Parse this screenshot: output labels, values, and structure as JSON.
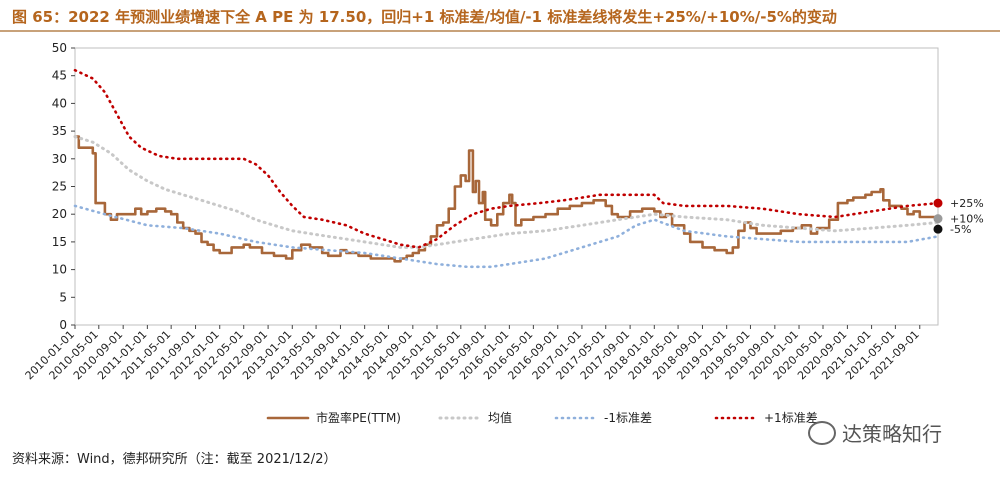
{
  "title": "图 65：2022 年预测业绩增速下全 A PE 为 17.50，回归+1 标准差/均值/-1 标准差线将发生+25%/+10%/-5%的变动",
  "source": "资料来源：Wind，德邦研究所（注：截至 2021/12/2）",
  "watermark": "达策略知行",
  "colors": {
    "pe": "#a8673a",
    "mean": "#c8c8c8",
    "minus1": "#8fb0dc",
    "plus1": "#c00000",
    "marker_plus25": "#c00000",
    "marker_plus10": "#9a9a9a",
    "marker_minus5": "#111111"
  },
  "chart_data": {
    "type": "line",
    "ylim": [
      0,
      50
    ],
    "yticks": [
      0,
      5,
      10,
      15,
      20,
      25,
      30,
      35,
      40,
      45,
      50
    ],
    "xlim": [
      "2010-01-01",
      "2021-12-02"
    ],
    "xticks": [
      "2010-01-01",
      "2010-05-01",
      "2010-09-01",
      "2011-01-01",
      "2011-05-01",
      "2011-09-01",
      "2012-01-01",
      "2012-05-01",
      "2012-09-01",
      "2013-01-01",
      "2013-05-01",
      "2013-09-01",
      "2014-01-01",
      "2014-05-01",
      "2014-09-01",
      "2015-01-01",
      "2015-05-01",
      "2015-09-01",
      "2016-01-01",
      "2016-05-01",
      "2016-09-01",
      "2017-01-01",
      "2017-05-01",
      "2017-09-01",
      "2018-01-01",
      "2018-05-01",
      "2018-09-01",
      "2019-01-01",
      "2019-05-01",
      "2019-09-01",
      "2020-01-01",
      "2020-05-01",
      "2020-09-01",
      "2021-01-01",
      "2021-05-01",
      "2021-09-01"
    ],
    "legend_position": "bottom",
    "series": [
      {
        "name": "市盈率PE(TTM)",
        "style": "solid",
        "points": [
          [
            "2010-01-01",
            34
          ],
          [
            "2010-01-20",
            32
          ],
          [
            "2010-03-01",
            32
          ],
          [
            "2010-04-01",
            31
          ],
          [
            "2010-04-15",
            22
          ],
          [
            "2010-06-01",
            20
          ],
          [
            "2010-07-01",
            19
          ],
          [
            "2010-08-01",
            20
          ],
          [
            "2010-10-01",
            20
          ],
          [
            "2010-11-01",
            21
          ],
          [
            "2010-12-01",
            20
          ],
          [
            "2011-01-01",
            20.5
          ],
          [
            "2011-02-15",
            21
          ],
          [
            "2011-04-01",
            20.5
          ],
          [
            "2011-05-01",
            20
          ],
          [
            "2011-06-01",
            18.5
          ],
          [
            "2011-07-01",
            17.5
          ],
          [
            "2011-08-01",
            17
          ],
          [
            "2011-09-01",
            16.5
          ],
          [
            "2011-10-01",
            15
          ],
          [
            "2011-11-01",
            14.5
          ],
          [
            "2011-12-01",
            13.5
          ],
          [
            "2012-01-01",
            13
          ],
          [
            "2012-03-01",
            14
          ],
          [
            "2012-05-01",
            14.5
          ],
          [
            "2012-06-01",
            14
          ],
          [
            "2012-08-01",
            13
          ],
          [
            "2012-10-01",
            12.5
          ],
          [
            "2012-12-01",
            12
          ],
          [
            "2013-01-01",
            13.5
          ],
          [
            "2013-02-15",
            14.5
          ],
          [
            "2013-04-01",
            14
          ],
          [
            "2013-06-01",
            13
          ],
          [
            "2013-07-01",
            12.5
          ],
          [
            "2013-09-01",
            13.5
          ],
          [
            "2013-10-01",
            13
          ],
          [
            "2013-12-01",
            12.5
          ],
          [
            "2014-02-01",
            12
          ],
          [
            "2014-04-01",
            12
          ],
          [
            "2014-06-01",
            11.5
          ],
          [
            "2014-07-01",
            12
          ],
          [
            "2014-08-01",
            12.5
          ],
          [
            "2014-09-01",
            13
          ],
          [
            "2014-10-01",
            13.5
          ],
          [
            "2014-11-01",
            14.5
          ],
          [
            "2014-12-01",
            16
          ],
          [
            "2015-01-01",
            18
          ],
          [
            "2015-02-01",
            18.5
          ],
          [
            "2015-03-01",
            21
          ],
          [
            "2015-04-01",
            25
          ],
          [
            "2015-05-01",
            27
          ],
          [
            "2015-05-25",
            26
          ],
          [
            "2015-06-12",
            31.5
          ],
          [
            "2015-07-01",
            24
          ],
          [
            "2015-07-15",
            26
          ],
          [
            "2015-08-01",
            22
          ],
          [
            "2015-08-20",
            24
          ],
          [
            "2015-09-01",
            19
          ],
          [
            "2015-10-01",
            18
          ],
          [
            "2015-11-01",
            20
          ],
          [
            "2015-12-01",
            22
          ],
          [
            "2016-01-01",
            23.5
          ],
          [
            "2016-01-15",
            22
          ],
          [
            "2016-02-01",
            18
          ],
          [
            "2016-03-01",
            19
          ],
          [
            "2016-05-01",
            19.5
          ],
          [
            "2016-07-01",
            20
          ],
          [
            "2016-09-01",
            21
          ],
          [
            "2016-11-01",
            21.5
          ],
          [
            "2017-01-01",
            22
          ],
          [
            "2017-03-01",
            22.5
          ],
          [
            "2017-05-01",
            21.5
          ],
          [
            "2017-06-01",
            20
          ],
          [
            "2017-07-01",
            19.5
          ],
          [
            "2017-09-01",
            20.5
          ],
          [
            "2017-11-01",
            21
          ],
          [
            "2018-01-01",
            20.5
          ],
          [
            "2018-02-01",
            19.5
          ],
          [
            "2018-03-01",
            20
          ],
          [
            "2018-04-01",
            18
          ],
          [
            "2018-06-01",
            16.5
          ],
          [
            "2018-07-01",
            15
          ],
          [
            "2018-09-01",
            14
          ],
          [
            "2018-11-01",
            13.5
          ],
          [
            "2019-01-01",
            13
          ],
          [
            "2019-02-01",
            14
          ],
          [
            "2019-03-01",
            17
          ],
          [
            "2019-04-01",
            18.5
          ],
          [
            "2019-05-01",
            17.5
          ],
          [
            "2019-06-01",
            16.5
          ],
          [
            "2019-08-01",
            16.5
          ],
          [
            "2019-10-01",
            17
          ],
          [
            "2019-12-01",
            17.5
          ],
          [
            "2020-01-15",
            18
          ],
          [
            "2020-03-01",
            16.5
          ],
          [
            "2020-04-01",
            17.5
          ],
          [
            "2020-06-01",
            19
          ],
          [
            "2020-07-15",
            22
          ],
          [
            "2020-09-01",
            22.5
          ],
          [
            "2020-10-01",
            23
          ],
          [
            "2020-12-01",
            23.5
          ],
          [
            "2021-01-01",
            24
          ],
          [
            "2021-02-15",
            24.5
          ],
          [
            "2021-03-01",
            22.5
          ],
          [
            "2021-04-01",
            21.5
          ],
          [
            "2021-06-01",
            21
          ],
          [
            "2021-07-01",
            20
          ],
          [
            "2021-08-01",
            20.5
          ],
          [
            "2021-09-01",
            19.5
          ],
          [
            "2021-10-01",
            19.5
          ],
          [
            "2021-11-01",
            19.5
          ],
          [
            "2021-12-02",
            19.5
          ]
        ]
      },
      {
        "name": "均值",
        "style": "dotted",
        "points": [
          [
            "2010-01-01",
            34
          ],
          [
            "2010-04-01",
            33
          ],
          [
            "2010-07-01",
            31
          ],
          [
            "2010-10-01",
            28
          ],
          [
            "2011-01-01",
            26
          ],
          [
            "2011-04-01",
            24.5
          ],
          [
            "2011-07-01",
            23.5
          ],
          [
            "2011-10-01",
            22.5
          ],
          [
            "2012-01-01",
            21.5
          ],
          [
            "2012-04-01",
            20.5
          ],
          [
            "2012-07-01",
            19
          ],
          [
            "2012-10-01",
            18
          ],
          [
            "2013-01-01",
            17
          ],
          [
            "2013-04-01",
            16.5
          ],
          [
            "2013-07-01",
            16
          ],
          [
            "2013-10-01",
            15.5
          ],
          [
            "2014-01-01",
            15
          ],
          [
            "2014-04-01",
            14.5
          ],
          [
            "2014-07-01",
            14
          ],
          [
            "2014-10-01",
            14
          ],
          [
            "2015-01-01",
            14.5
          ],
          [
            "2015-04-01",
            15
          ],
          [
            "2015-07-01",
            15.5
          ],
          [
            "2015-10-01",
            16
          ],
          [
            "2016-01-01",
            16.5
          ],
          [
            "2016-07-01",
            17
          ],
          [
            "2017-01-01",
            18
          ],
          [
            "2017-07-01",
            19
          ],
          [
            "2017-10-01",
            19.5
          ],
          [
            "2018-01-01",
            20
          ],
          [
            "2018-06-01",
            19.5
          ],
          [
            "2019-01-01",
            19
          ],
          [
            "2019-07-01",
            18
          ],
          [
            "2020-01-01",
            17.5
          ],
          [
            "2020-07-01",
            17
          ],
          [
            "2021-01-01",
            17.5
          ],
          [
            "2021-07-01",
            18
          ],
          [
            "2021-12-02",
            18.5
          ]
        ]
      },
      {
        "name": "-1标准差",
        "style": "dotted",
        "points": [
          [
            "2010-01-01",
            21.5
          ],
          [
            "2010-06-01",
            20
          ],
          [
            "2011-01-01",
            18
          ],
          [
            "2011-07-01",
            17.5
          ],
          [
            "2012-01-01",
            16.5
          ],
          [
            "2012-07-01",
            15
          ],
          [
            "2013-01-01",
            14
          ],
          [
            "2013-07-01",
            13.5
          ],
          [
            "2014-01-01",
            13
          ],
          [
            "2014-07-01",
            12
          ],
          [
            "2014-10-01",
            11.5
          ],
          [
            "2015-01-01",
            11
          ],
          [
            "2015-06-01",
            10.5
          ],
          [
            "2015-10-01",
            10.5
          ],
          [
            "2016-01-01",
            11
          ],
          [
            "2016-07-01",
            12
          ],
          [
            "2017-01-01",
            14
          ],
          [
            "2017-07-01",
            16
          ],
          [
            "2017-10-01",
            18
          ],
          [
            "2018-01-01",
            19
          ],
          [
            "2018-06-01",
            17
          ],
          [
            "2019-01-01",
            16
          ],
          [
            "2019-07-01",
            15.5
          ],
          [
            "2020-01-01",
            15
          ],
          [
            "2020-07-01",
            15
          ],
          [
            "2021-01-01",
            15
          ],
          [
            "2021-07-01",
            15
          ],
          [
            "2021-12-02",
            16
          ]
        ]
      },
      {
        "name": "+1标准差",
        "style": "dotted",
        "points": [
          [
            "2010-01-01",
            46
          ],
          [
            "2010-04-01",
            44.5
          ],
          [
            "2010-06-01",
            42
          ],
          [
            "2010-08-01",
            38
          ],
          [
            "2010-10-01",
            34
          ],
          [
            "2010-12-01",
            32
          ],
          [
            "2011-03-01",
            30.5
          ],
          [
            "2011-06-01",
            30
          ],
          [
            "2011-12-01",
            30
          ],
          [
            "2012-05-01",
            30
          ],
          [
            "2012-07-01",
            29
          ],
          [
            "2012-09-01",
            27
          ],
          [
            "2012-11-01",
            24
          ],
          [
            "2013-01-01",
            21.5
          ],
          [
            "2013-03-01",
            19.5
          ],
          [
            "2013-06-01",
            19
          ],
          [
            "2013-10-01",
            18
          ],
          [
            "2014-01-01",
            16.5
          ],
          [
            "2014-04-01",
            15.5
          ],
          [
            "2014-07-01",
            14.5
          ],
          [
            "2014-10-01",
            14
          ],
          [
            "2015-01-01",
            15.5
          ],
          [
            "2015-04-01",
            18
          ],
          [
            "2015-07-01",
            20
          ],
          [
            "2015-10-01",
            21
          ],
          [
            "2016-01-01",
            21.5
          ],
          [
            "2016-06-01",
            22
          ],
          [
            "2016-10-01",
            22.5
          ],
          [
            "2017-01-01",
            23
          ],
          [
            "2017-04-01",
            23.5
          ],
          [
            "2017-10-01",
            23.5
          ],
          [
            "2018-01-01",
            23.5
          ],
          [
            "2018-02-15",
            22
          ],
          [
            "2018-06-01",
            21.5
          ],
          [
            "2019-01-01",
            21.5
          ],
          [
            "2019-07-01",
            21
          ],
          [
            "2020-01-01",
            20
          ],
          [
            "2020-07-01",
            19.5
          ],
          [
            "2021-01-01",
            20.5
          ],
          [
            "2021-07-01",
            21.5
          ],
          [
            "2021-12-02",
            22
          ]
        ]
      }
    ],
    "annotations": [
      {
        "label": "+25%",
        "date": "2021-12-02",
        "value": 22
      },
      {
        "label": "+10%",
        "date": "2021-12-02",
        "value": 19.2
      },
      {
        "label": "-5%",
        "date": "2021-12-02",
        "value": 17.3
      }
    ]
  }
}
